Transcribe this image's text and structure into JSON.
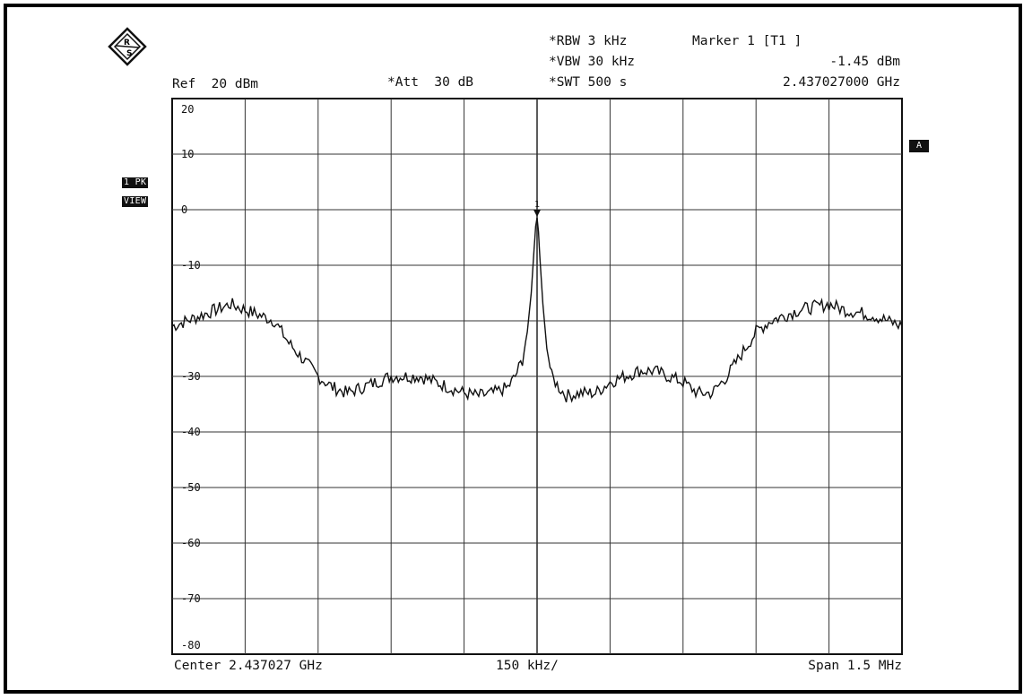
{
  "instrument": {
    "ref_text": "Ref  20 dBm",
    "att_text": "*Att  30 dB",
    "rbw_text": "*RBW 3 kHz",
    "vbw_text": "*VBW 30 kHz",
    "swt_text": "*SWT 500 s",
    "marker_label": "Marker 1 [T1 ]",
    "marker_level": "-1.45 dBm",
    "marker_freq": "2.437027000 GHz",
    "trace_badge_line1": "1 PK",
    "trace_badge_line2": "VIEW",
    "a_badge": "A",
    "marker_number": "1",
    "center_text": "Center 2.437027 GHz",
    "div_text": "150 kHz/",
    "span_text": "Span 1.5 MHz"
  },
  "chart_data": {
    "type": "line",
    "xlabel": "",
    "ylabel": "",
    "title": "",
    "center_ghz": 2.437027,
    "span_mhz": 1.5,
    "xlim_khz": [
      -750,
      750
    ],
    "ylim": [
      -80,
      20
    ],
    "y_ticks": [
      20,
      10,
      0,
      -10,
      -20,
      -30,
      -40,
      -50,
      -60,
      -70,
      -80
    ],
    "y_tick_labels": [
      "20",
      "10",
      "0",
      "-10",
      "",
      "-30",
      "-40",
      "-50",
      "-60",
      "-70",
      "-80"
    ],
    "x_divisions": 10,
    "grid": true,
    "series": [
      {
        "name": "",
        "x_khz": [
          -750,
          -720,
          -690,
          -660,
          -630,
          -600,
          -570,
          -540,
          -510,
          -480,
          -450,
          -420,
          -390,
          -360,
          -330,
          -300,
          -270,
          -240,
          -210,
          -180,
          -150,
          -120,
          -90,
          -60,
          -45,
          -30,
          -20,
          -12,
          -6,
          -3,
          0,
          3,
          6,
          12,
          20,
          30,
          45,
          60,
          90,
          120,
          150,
          180,
          210,
          240,
          270,
          300,
          330,
          360,
          390,
          420,
          450,
          480,
          510,
          540,
          570,
          600,
          630,
          660,
          690,
          720,
          750
        ],
        "dbm": [
          -21,
          -20,
          -19,
          -18,
          -17,
          -18,
          -19,
          -20,
          -24,
          -27,
          -30,
          -32,
          -33,
          -32,
          -31,
          -30,
          -30,
          -30,
          -31,
          -32,
          -33,
          -33.5,
          -33,
          -32,
          -30,
          -27,
          -22,
          -15,
          -7,
          -3,
          -1.45,
          -4,
          -9,
          -17,
          -25,
          -30,
          -32,
          -33.5,
          -33,
          -33,
          -31,
          -30,
          -29,
          -29,
          -30,
          -31,
          -33,
          -33,
          -30,
          -26,
          -22,
          -20,
          -19,
          -18,
          -17.5,
          -17,
          -18,
          -18.5,
          -19,
          -20,
          -21
        ]
      }
    ],
    "marker": {
      "x_khz": 0,
      "dbm": -1.45
    }
  }
}
